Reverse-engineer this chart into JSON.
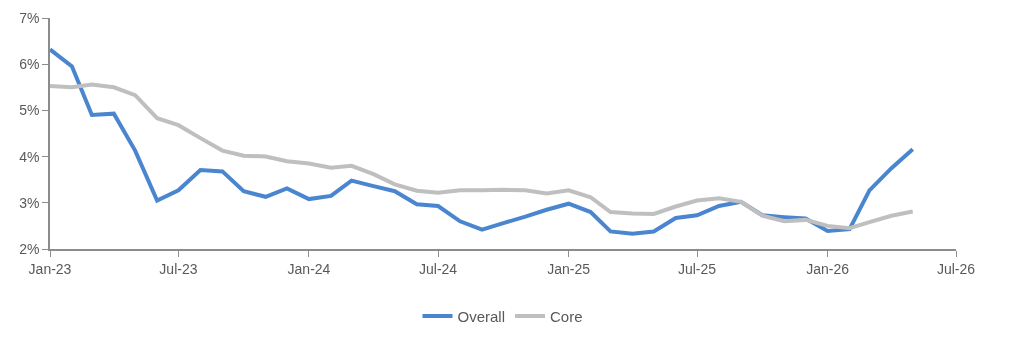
{
  "chart_data": {
    "type": "line",
    "x": [
      "2023-01",
      "2023-02",
      "2023-03",
      "2023-04",
      "2023-05",
      "2023-06",
      "2023-07",
      "2023-08",
      "2023-09",
      "2023-10",
      "2023-11",
      "2023-12",
      "2024-01",
      "2024-02",
      "2024-03",
      "2024-04",
      "2024-05",
      "2024-06",
      "2024-07",
      "2024-08",
      "2024-09",
      "2024-10",
      "2024-11",
      "2024-12",
      "2025-01",
      "2025-02",
      "2025-03",
      "2025-04",
      "2025-05",
      "2025-06",
      "2025-07",
      "2025-08",
      "2025-09",
      "2025-10",
      "2025-11",
      "2025-12",
      "2026-01",
      "2026-02",
      "2026-03",
      "2026-04",
      "2026-05"
    ],
    "series": [
      {
        "name": "Overall",
        "color": "#4a86cf",
        "values": [
          6.32,
          5.95,
          4.9,
          4.93,
          4.13,
          3.05,
          3.27,
          3.71,
          3.68,
          3.25,
          3.13,
          3.31,
          3.08,
          3.15,
          3.48,
          3.36,
          3.25,
          2.97,
          2.93,
          2.6,
          2.42,
          2.56,
          2.7,
          2.85,
          2.98,
          2.8,
          2.38,
          2.33,
          2.38,
          2.67,
          2.73,
          2.93,
          3.02,
          2.73,
          2.69,
          2.66,
          2.39,
          2.43,
          3.27,
          3.75,
          4.16
        ]
      },
      {
        "name": "Core",
        "color": "#bfbfbf",
        "values": [
          5.53,
          5.5,
          5.56,
          5.5,
          5.33,
          4.83,
          4.68,
          4.4,
          4.13,
          4.02,
          4.0,
          3.9,
          3.85,
          3.76,
          3.8,
          3.62,
          3.4,
          3.26,
          3.22,
          3.27,
          3.27,
          3.28,
          3.27,
          3.2,
          3.27,
          3.12,
          2.8,
          2.77,
          2.76,
          2.92,
          3.05,
          3.1,
          3.02,
          2.72,
          2.6,
          2.63,
          2.5,
          2.45,
          2.58,
          2.72,
          2.81
        ]
      }
    ],
    "xlim": [
      "2023-01",
      "2026-07"
    ],
    "xticks": [
      {
        "value": "2023-01",
        "label": "Jan-23"
      },
      {
        "value": "2023-07",
        "label": "Jul-23"
      },
      {
        "value": "2024-01",
        "label": "Jan-24"
      },
      {
        "value": "2024-07",
        "label": "Jul-24"
      },
      {
        "value": "2025-01",
        "label": "Jan-25"
      },
      {
        "value": "2025-07",
        "label": "Jul-25"
      },
      {
        "value": "2026-01",
        "label": "Jan-26"
      },
      {
        "value": "2026-07",
        "label": "Jul-26"
      }
    ],
    "ylim": [
      2,
      7
    ],
    "yticks": [
      {
        "value": 2,
        "label": "2%"
      },
      {
        "value": 3,
        "label": "3%"
      },
      {
        "value": 4,
        "label": "4%"
      },
      {
        "value": 5,
        "label": "5%"
      },
      {
        "value": 6,
        "label": "6%"
      },
      {
        "value": 7,
        "label": "7%"
      }
    ],
    "legend": "bottom",
    "marker": "none",
    "line_style": "solid"
  }
}
